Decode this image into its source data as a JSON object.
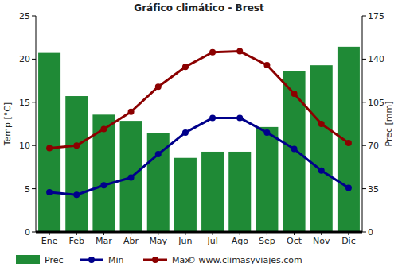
{
  "chart_data": {
    "type": "bar",
    "title": "Gráfico climático - Brest",
    "categories": [
      "Ene",
      "Feb",
      "Mar",
      "Abr",
      "May",
      "Jun",
      "Jul",
      "Ago",
      "Sep",
      "Oct",
      "Nov",
      "Dic"
    ],
    "series": [
      {
        "name": "Prec",
        "type": "bar",
        "axis": "y2",
        "color": "#1f8a36",
        "values": [
          145,
          110,
          95,
          90,
          80,
          60,
          65,
          65,
          85,
          130,
          135,
          150
        ]
      },
      {
        "name": "Min",
        "type": "line",
        "color": "#00008b",
        "marker": "circle",
        "values": [
          4.6,
          4.3,
          5.4,
          6.3,
          9.0,
          11.5,
          13.2,
          13.2,
          11.5,
          9.6,
          7.1,
          5.1
        ]
      },
      {
        "name": "Max",
        "type": "line",
        "color": "#8b0000",
        "marker": "circle",
        "values": [
          9.7,
          10.0,
          11.9,
          13.9,
          16.8,
          19.1,
          20.8,
          20.9,
          19.3,
          16.0,
          12.5,
          10.3
        ]
      }
    ],
    "y_label": "Temp [°C]",
    "y2_label": "Prec [mm]",
    "ylim": [
      0,
      25
    ],
    "yticks": [
      0,
      5,
      10,
      15,
      20,
      25
    ],
    "y2lim": [
      0,
      175
    ],
    "y2ticks": [
      0,
      35,
      70,
      105,
      140,
      175
    ],
    "grid": false,
    "legend": "bottom",
    "annotations": [
      "© www.climasyviajes.com"
    ]
  }
}
